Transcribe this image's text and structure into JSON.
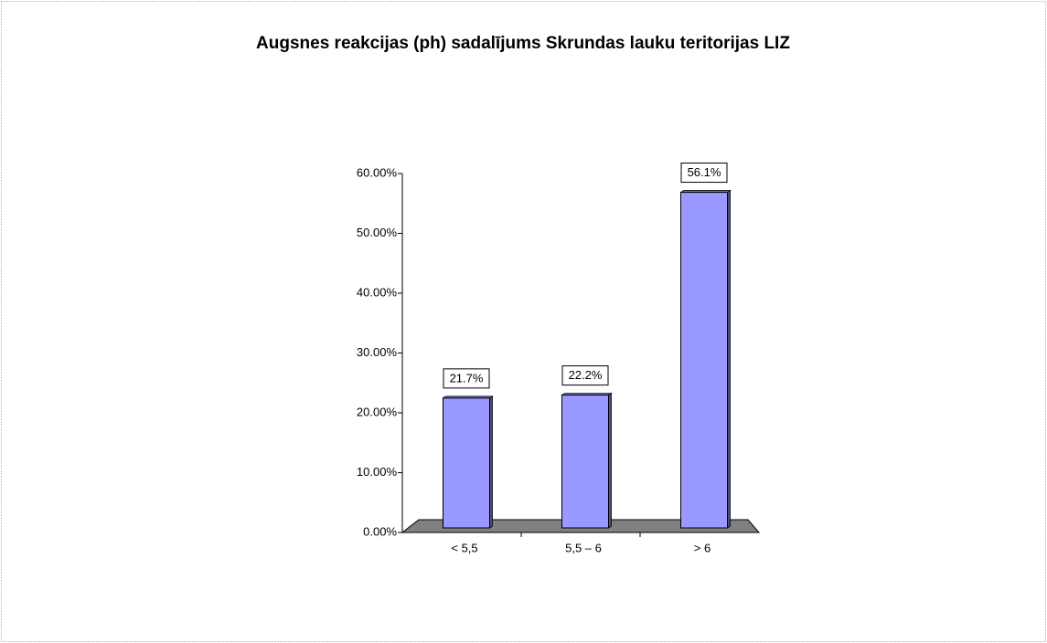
{
  "chart_data": {
    "type": "bar",
    "title": "Augsnes reakcijas (ph) sadalījums Skrundas lauku teritorijas LIZ",
    "categories": [
      "< 5,5",
      "5,5 – 6",
      "> 6"
    ],
    "values": [
      21.7,
      22.2,
      56.1
    ],
    "value_labels": [
      "21.7%",
      "22.2%",
      "56.1%"
    ],
    "color": "#9999ff",
    "ylim": [
      0,
      60
    ],
    "yticks": [
      {
        "value": 0,
        "label": "0.00%"
      },
      {
        "value": 10,
        "label": "10.00%"
      },
      {
        "value": 20,
        "label": "20.00%"
      },
      {
        "value": 30,
        "label": "30.00%"
      },
      {
        "value": 40,
        "label": "40.00%"
      },
      {
        "value": 50,
        "label": "50.00%"
      },
      {
        "value": 60,
        "label": "60.00%"
      }
    ],
    "grid": false
  }
}
